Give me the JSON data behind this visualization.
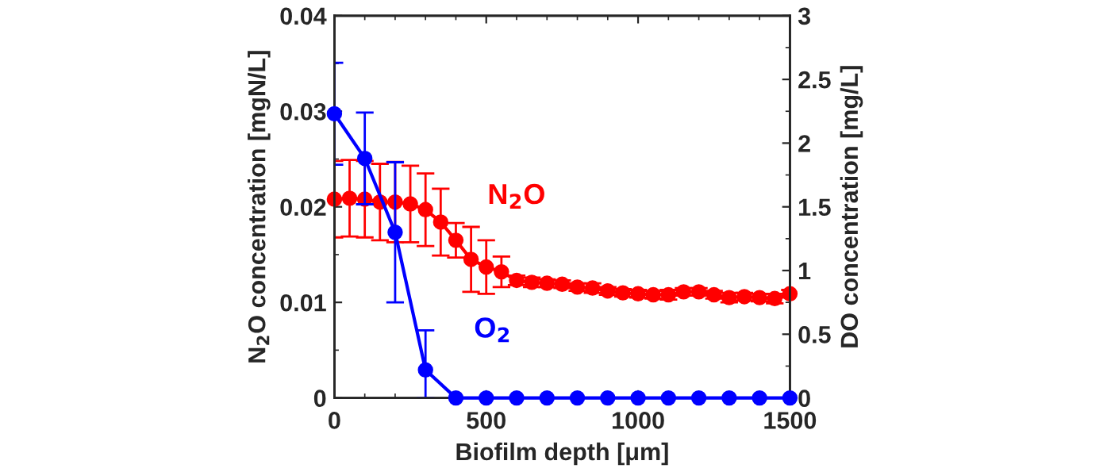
{
  "chart_data": {
    "type": "line",
    "xlabel": "Biofilm depth [μm]",
    "ylabel": "N$_{2}$O concentration [mgN/L]",
    "y2label": "DO concentration [mg/L]",
    "xlim": [
      0,
      1500
    ],
    "xticks": [
      0,
      500,
      1000,
      1500
    ],
    "ylim": [
      0,
      0.04
    ],
    "yticks": [
      0,
      0.01,
      0.02,
      0.03,
      0.04
    ],
    "y2lim": [
      0,
      3
    ],
    "y2ticks": [
      0,
      0.5,
      1,
      1.5,
      2,
      2.5,
      3
    ],
    "marker": "circle",
    "line_style": "solid",
    "grid": false,
    "legend": false,
    "series": [
      {
        "name": "N$_{2}$O",
        "color": "#ff0000",
        "x": [
          0,
          50,
          100,
          150,
          200,
          250,
          300,
          350,
          400,
          450,
          500,
          550,
          600,
          650,
          700,
          750,
          800,
          850,
          900,
          950,
          1000,
          1050,
          1100,
          1150,
          1200,
          1250,
          1300,
          1350,
          1400,
          1450,
          1500
        ],
        "values": [
          0.0208,
          0.0209,
          0.0208,
          0.0205,
          0.0205,
          0.0203,
          0.0197,
          0.0184,
          0.0165,
          0.0145,
          0.0137,
          0.0132,
          0.0123,
          0.0121,
          0.012,
          0.0119,
          0.0116,
          0.0115,
          0.0112,
          0.011,
          0.0109,
          0.0108,
          0.0108,
          0.0111,
          0.0111,
          0.0108,
          0.0105,
          0.0106,
          0.0105,
          0.0104,
          0.0109
        ],
        "errors": [
          0.004,
          0.004,
          0.004,
          0.004,
          0.0042,
          0.004,
          0.0038,
          0.0035,
          0.0018,
          0.0034,
          0.0028,
          0.0016,
          0.0005,
          0.0005,
          0.0004,
          0.0004,
          0.0004,
          0.0005,
          0.0004,
          0.0004,
          0.0004,
          0.0004,
          0.0005,
          0.0004,
          0.0004,
          0.0004,
          0.0005,
          0.0004,
          0.0004,
          0.0005,
          0.0004
        ]
      },
      {
        "name": "O$_{2}$",
        "color": "#0000ff",
        "axis": "y2",
        "x": [
          0,
          100,
          200,
          300,
          400,
          500,
          600,
          700,
          800,
          900,
          1000,
          1100,
          1200,
          1300,
          1400,
          1500
        ],
        "values": [
          2.23,
          1.88,
          1.3,
          0.22,
          0,
          0,
          0,
          0,
          0,
          0,
          0,
          0,
          0,
          0,
          0,
          0
        ],
        "errors": [
          0.4,
          0.36,
          0.55,
          [
            0,
            0.53
          ],
          null,
          null,
          null,
          null,
          null,
          null,
          null,
          null,
          null,
          null,
          null,
          null
        ]
      }
    ]
  }
}
